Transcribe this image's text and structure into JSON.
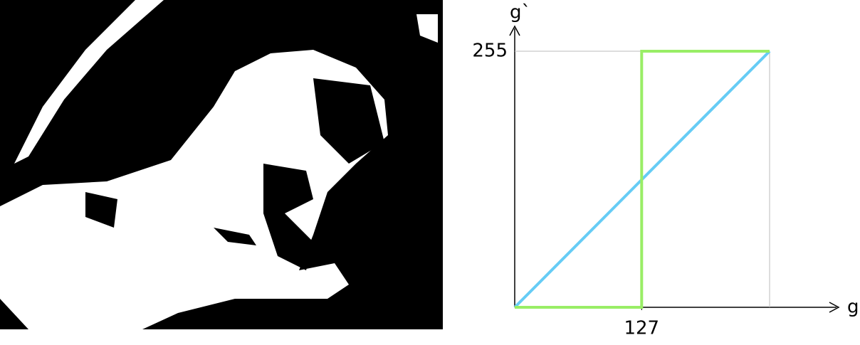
{
  "chart_data": {
    "type": "line",
    "xlabel": "g",
    "ylabel": "g`",
    "xlim": [
      0,
      255
    ],
    "ylim": [
      0,
      255
    ],
    "xticks": [
      127
    ],
    "yticks": [
      255
    ],
    "series": [
      {
        "color": "#66ccf5",
        "x": [
          0,
          255
        ],
        "values": [
          0,
          255
        ]
      },
      {
        "color": "#99ee66",
        "x": [
          0,
          127,
          127,
          255
        ],
        "values": [
          0,
          0,
          255,
          255
        ]
      }
    ]
  }
}
